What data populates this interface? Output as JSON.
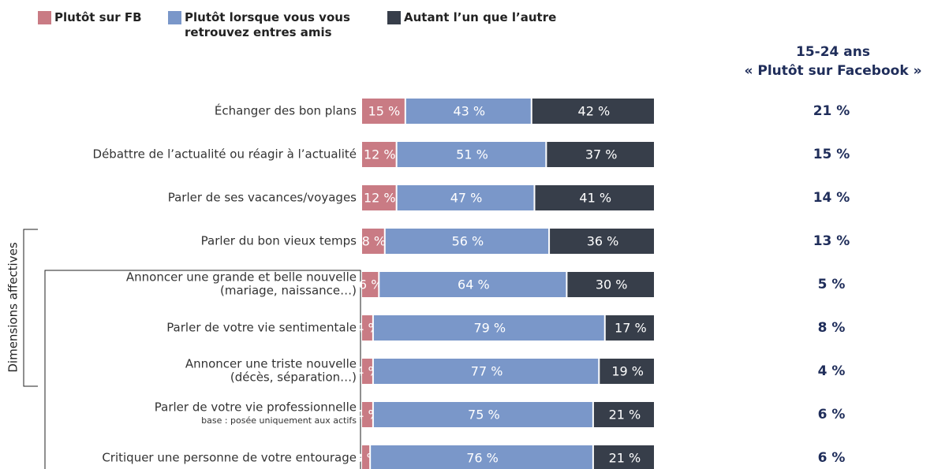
{
  "chart_data": {
    "type": "stacked-bar",
    "categories": [
      [
        "Échanger des bon plans"
      ],
      [
        "Débattre de l’actualité ou réagir à l’actualité"
      ],
      [
        "Parler de ses vacances/voyages"
      ],
      [
        "Parler du bon vieux temps"
      ],
      [
        "Annoncer une grande et belle nouvelle",
        "(mariage, naissance…)"
      ],
      [
        "Parler de votre vie sentimentale"
      ],
      [
        "Annoncer une triste nouvelle",
        "(décès, séparation…)"
      ],
      [
        "Parler de votre vie professionnelle",
        "base : posée uniquement aux actifs"
      ],
      [
        "Critiquer une personne de votre entourage"
      ]
    ],
    "series": [
      {
        "name": "Plutôt sur FB",
        "color": "#c97b84",
        "values": [
          15,
          12,
          12,
          8,
          6,
          4,
          4,
          4,
          3
        ],
        "value_labels": [
          "15 %",
          "12 %",
          "12 %",
          "8 %",
          "6 %",
          "4 %",
          "4 %",
          "4 %",
          "3 %"
        ]
      },
      {
        "name": "Plutôt lorsque vous vous retrouvez entres amis",
        "color": "#7a97c9",
        "values": [
          43,
          51,
          47,
          56,
          64,
          79,
          77,
          75,
          76
        ],
        "value_labels": [
          "43 %",
          "51 %",
          "47 %",
          "56 %",
          "64 %",
          "79 %",
          "77 %",
          "75 %",
          "76 %"
        ]
      },
      {
        "name": "Autant l’un que l’autre",
        "color": "#373e4a",
        "values": [
          42,
          37,
          41,
          36,
          30,
          17,
          19,
          21,
          21
        ],
        "value_labels": [
          "42 %",
          "37 %",
          "41 %",
          "36 %",
          "30 %",
          "17 %",
          "19 %",
          "21 %",
          "21 %"
        ]
      }
    ],
    "annotation": "Dimensions affectives",
    "side_column": {
      "title": [
        "15-24 ans",
        "« Plutôt sur Facebook »"
      ],
      "color": "#1f2d5a",
      "values": [
        21,
        15,
        14,
        13,
        5,
        8,
        4,
        6,
        6
      ],
      "value_labels": [
        "21 %",
        "15 %",
        "14 %",
        "13 %",
        "5 %",
        "8 %",
        "4 %",
        "6 %",
        "6 %"
      ]
    }
  }
}
